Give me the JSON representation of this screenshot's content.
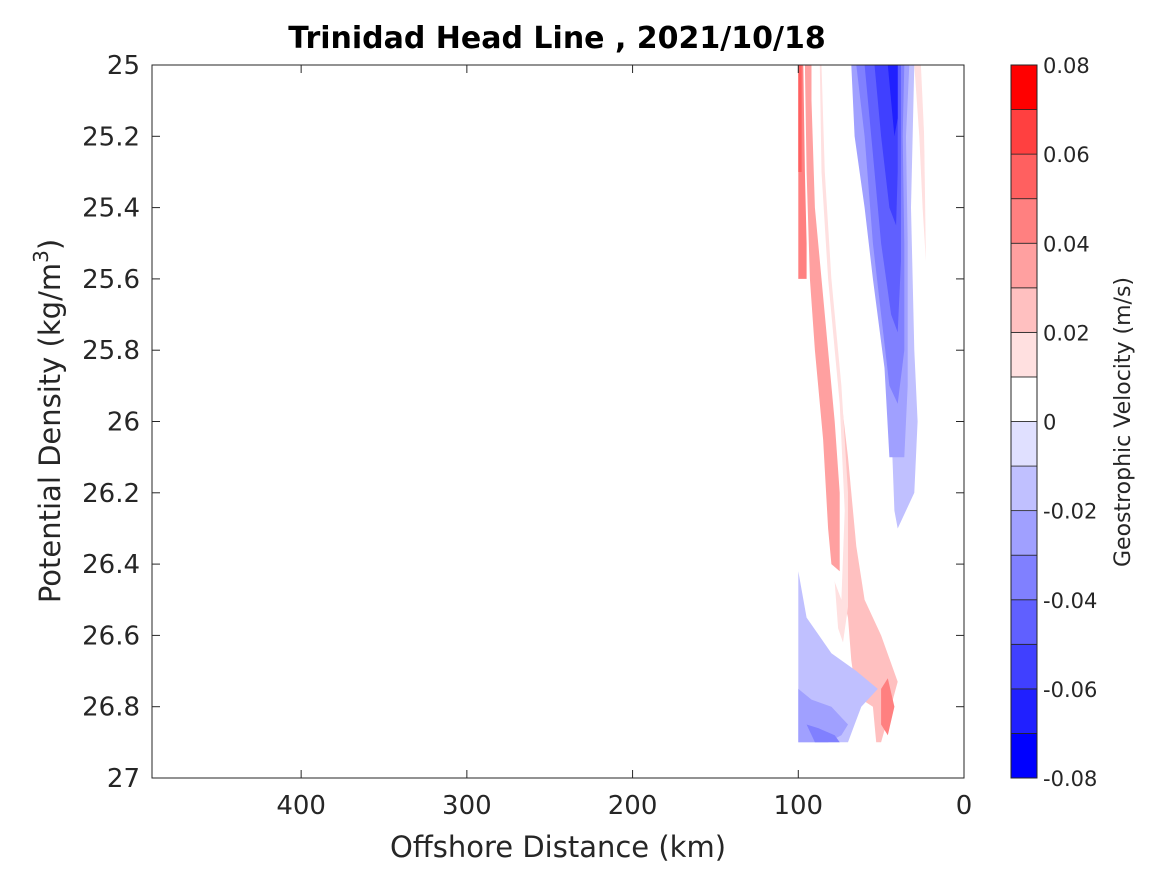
{
  "chart_data": {
    "type": "heatmap",
    "subtype": "filled-contour",
    "title": "Trinidad Head Line , 2021/10/18",
    "xlabel": "Offshore Distance (km)",
    "ylabel_prefix": "Potential Density (kg/m",
    "ylabel_superscript": "3",
    "ylabel_suffix": ")",
    "colorbar_label": "Geostrophic Velocity (m/s)",
    "x_reversed": true,
    "xlim": [
      0,
      490
    ],
    "ylim": [
      25,
      27
    ],
    "y_reversed": true,
    "grid": false,
    "x_ticks": [
      {
        "value": 400,
        "label": "400"
      },
      {
        "value": 300,
        "label": "300"
      },
      {
        "value": 200,
        "label": "200"
      },
      {
        "value": 100,
        "label": "100"
      },
      {
        "value": 0,
        "label": "0"
      }
    ],
    "y_ticks": [
      {
        "value": 25,
        "label": "25"
      },
      {
        "value": 25.2,
        "label": "25.2"
      },
      {
        "value": 25.4,
        "label": "25.4"
      },
      {
        "value": 25.6,
        "label": "25.6"
      },
      {
        "value": 25.8,
        "label": "25.8"
      },
      {
        "value": 26,
        "label": "26"
      },
      {
        "value": 26.2,
        "label": "26.2"
      },
      {
        "value": 26.4,
        "label": "26.4"
      },
      {
        "value": 26.6,
        "label": "26.6"
      },
      {
        "value": 26.8,
        "label": "26.8"
      },
      {
        "value": 27,
        "label": "27"
      }
    ],
    "colorbar": {
      "clim": [
        -0.08,
        0.08
      ],
      "levels": [
        -0.08,
        -0.07,
        -0.06,
        -0.05,
        -0.04,
        -0.03,
        -0.02,
        -0.01,
        0,
        0.01,
        0.02,
        0.03,
        0.04,
        0.05,
        0.06,
        0.07,
        0.08
      ],
      "colors": [
        "#0000ff",
        "#2020ff",
        "#4040ff",
        "#6060ff",
        "#8080ff",
        "#a0a0ff",
        "#c0c0ff",
        "#e0e0ff",
        "#ffffff",
        "#ffffff",
        "#ffe0e0",
        "#ffc0c0",
        "#ffa0a0",
        "#ff8080",
        "#ff6060",
        "#ff4040",
        "#ff0000"
      ],
      "ticks": [
        {
          "value": 0.08,
          "label": "0.08"
        },
        {
          "value": 0.06,
          "label": "0.06"
        },
        {
          "value": 0.04,
          "label": "0.04"
        },
        {
          "value": 0.02,
          "label": "0.02"
        },
        {
          "value": 0,
          "label": "0"
        },
        {
          "value": -0.02,
          "label": "-0.02"
        },
        {
          "value": -0.04,
          "label": "-0.04"
        },
        {
          "value": -0.06,
          "label": "-0.06"
        },
        {
          "value": -0.08,
          "label": "-0.08"
        }
      ]
    },
    "contour_regions": [
      {
        "level": 0.03,
        "points": [
          [
            100,
            25
          ],
          [
            90,
            25
          ],
          [
            88,
            25.6
          ],
          [
            85,
            25.9
          ],
          [
            80,
            26.2
          ],
          [
            75,
            26.45
          ],
          [
            70,
            26.55
          ],
          [
            68,
            26.67
          ],
          [
            65,
            26.77
          ],
          [
            55,
            26.8
          ],
          [
            53,
            26.9
          ],
          [
            50,
            26.9
          ],
          [
            47,
            26.85
          ],
          [
            40,
            26.73
          ],
          [
            50,
            26.6
          ],
          [
            60,
            26.5
          ],
          [
            65,
            26.35
          ],
          [
            70,
            26.1
          ],
          [
            75,
            25.9
          ],
          [
            82,
            25.6
          ],
          [
            86,
            25.3
          ],
          [
            87,
            25
          ]
        ]
      },
      {
        "level": 0.02,
        "points": [
          [
            100,
            25
          ],
          [
            92,
            25
          ],
          [
            90,
            25.6
          ],
          [
            86,
            25.85
          ],
          [
            80,
            26.1
          ],
          [
            78,
            26.45
          ],
          [
            76,
            26.58
          ],
          [
            73,
            26.62
          ],
          [
            70,
            26.52
          ],
          [
            70,
            26.2
          ],
          [
            74,
            25.9
          ],
          [
            80,
            25.6
          ],
          [
            84,
            25.3
          ],
          [
            86,
            25
          ]
        ]
      },
      {
        "level": 0.01,
        "points": [
          [
            100,
            25
          ],
          [
            93,
            25
          ],
          [
            92,
            25.3
          ],
          [
            90,
            25.6
          ],
          [
            86,
            25.85
          ],
          [
            82,
            26.1
          ],
          [
            80,
            26.35
          ],
          [
            78,
            26.45
          ],
          [
            74,
            26.5
          ],
          [
            72,
            26.25
          ],
          [
            75,
            25.95
          ],
          [
            82,
            25.6
          ],
          [
            86,
            25.3
          ],
          [
            87,
            25
          ]
        ]
      },
      {
        "level": 0.04,
        "points": [
          [
            100,
            25
          ],
          [
            96,
            25
          ],
          [
            95,
            25.3
          ],
          [
            93,
            25.6
          ],
          [
            90,
            25.8
          ],
          [
            85,
            26.05
          ],
          [
            82,
            26.3
          ],
          [
            80,
            26.4
          ],
          [
            75,
            26.42
          ],
          [
            75,
            26.2
          ],
          [
            78,
            26.0
          ],
          [
            84,
            25.7
          ],
          [
            90,
            25.4
          ],
          [
            92,
            25.1
          ],
          [
            92,
            25
          ]
        ]
      },
      {
        "level": 0.05,
        "points": [
          [
            100,
            25
          ],
          [
            97,
            25
          ],
          [
            96,
            25.3
          ],
          [
            95,
            25.5
          ],
          [
            95,
            25.6
          ],
          [
            100,
            25.6
          ]
        ]
      },
      {
        "level": 0.06,
        "points": [
          [
            100,
            25
          ],
          [
            98,
            25
          ],
          [
            98,
            25.3
          ],
          [
            100,
            25.3
          ]
        ]
      },
      {
        "level": 0.05,
        "points": [
          [
            50,
            26.75
          ],
          [
            46,
            26.72
          ],
          [
            42,
            26.8
          ],
          [
            46,
            26.88
          ],
          [
            50,
            26.85
          ]
        ]
      },
      {
        "level": 0.02,
        "points": [
          [
            30,
            25
          ],
          [
            26,
            25
          ],
          [
            24,
            25.2
          ],
          [
            23,
            25.55
          ],
          [
            25,
            25.4
          ],
          [
            27,
            25.2
          ]
        ]
      },
      {
        "level": 0.01,
        "points": [
          [
            25,
            25
          ],
          [
            23,
            25
          ],
          [
            22,
            25.2
          ],
          [
            23,
            25.45
          ],
          [
            24,
            25.2
          ]
        ]
      },
      {
        "level": -0.02,
        "points": [
          [
            80,
            25
          ],
          [
            62,
            25
          ],
          [
            58,
            25.2
          ],
          [
            55,
            25.45
          ],
          [
            48,
            25.7
          ],
          [
            44,
            26.0
          ],
          [
            42,
            26.25
          ],
          [
            40,
            26.3
          ],
          [
            30,
            26.2
          ],
          [
            28,
            26.0
          ],
          [
            30,
            25.8
          ],
          [
            32,
            25.4
          ],
          [
            30,
            25
          ],
          [
            28,
            25
          ]
        ]
      },
      {
        "level": -0.03,
        "points": [
          [
            73,
            25
          ],
          [
            68,
            25
          ],
          [
            66,
            25.2
          ],
          [
            60,
            25.4
          ],
          [
            55,
            25.6
          ],
          [
            48,
            25.85
          ],
          [
            45,
            26.1
          ],
          [
            36,
            26.1
          ],
          [
            34,
            25.9
          ],
          [
            34,
            25.5
          ],
          [
            35,
            25.2
          ],
          [
            33,
            25
          ]
        ]
      },
      {
        "level": -0.04,
        "points": [
          [
            70,
            25
          ],
          [
            65,
            25
          ],
          [
            60,
            25.2
          ],
          [
            55,
            25.5
          ],
          [
            50,
            25.7
          ],
          [
            45,
            25.9
          ],
          [
            40,
            25.95
          ],
          [
            36,
            25.8
          ],
          [
            36,
            25.5
          ],
          [
            37,
            25.2
          ],
          [
            36,
            25
          ]
        ]
      },
      {
        "level": -0.05,
        "points": [
          [
            65,
            25
          ],
          [
            60,
            25
          ],
          [
            55,
            25.25
          ],
          [
            50,
            25.5
          ],
          [
            44,
            25.7
          ],
          [
            40,
            25.75
          ],
          [
            38,
            25.55
          ],
          [
            38,
            25.3
          ],
          [
            38,
            25
          ]
        ]
      },
      {
        "level": -0.06,
        "points": [
          [
            58,
            25
          ],
          [
            54,
            25
          ],
          [
            50,
            25.2
          ],
          [
            45,
            25.4
          ],
          [
            41,
            25.45
          ],
          [
            40,
            25.3
          ],
          [
            40,
            25
          ]
        ]
      },
      {
        "level": -0.07,
        "points": [
          [
            50,
            25
          ],
          [
            46,
            25
          ],
          [
            42,
            25.2
          ],
          [
            40,
            25.15
          ],
          [
            40,
            25
          ]
        ]
      },
      {
        "level": -0.02,
        "points": [
          [
            100,
            26.42
          ],
          [
            100,
            26.9
          ],
          [
            70,
            26.9
          ],
          [
            66,
            26.85
          ],
          [
            62,
            26.8
          ],
          [
            52,
            26.75
          ],
          [
            65,
            26.7
          ],
          [
            80,
            26.65
          ],
          [
            95,
            26.55
          ]
        ]
      },
      {
        "level": -0.03,
        "points": [
          [
            100,
            26.75
          ],
          [
            100,
            26.9
          ],
          [
            82,
            26.9
          ],
          [
            74,
            26.88
          ],
          [
            70,
            26.85
          ],
          [
            80,
            26.8
          ],
          [
            92,
            26.78
          ]
        ]
      },
      {
        "level": -0.04,
        "points": [
          [
            95,
            26.85
          ],
          [
            90,
            26.9
          ],
          [
            75,
            26.9
          ],
          [
            78,
            26.88
          ],
          [
            88,
            26.86
          ]
        ]
      }
    ]
  }
}
